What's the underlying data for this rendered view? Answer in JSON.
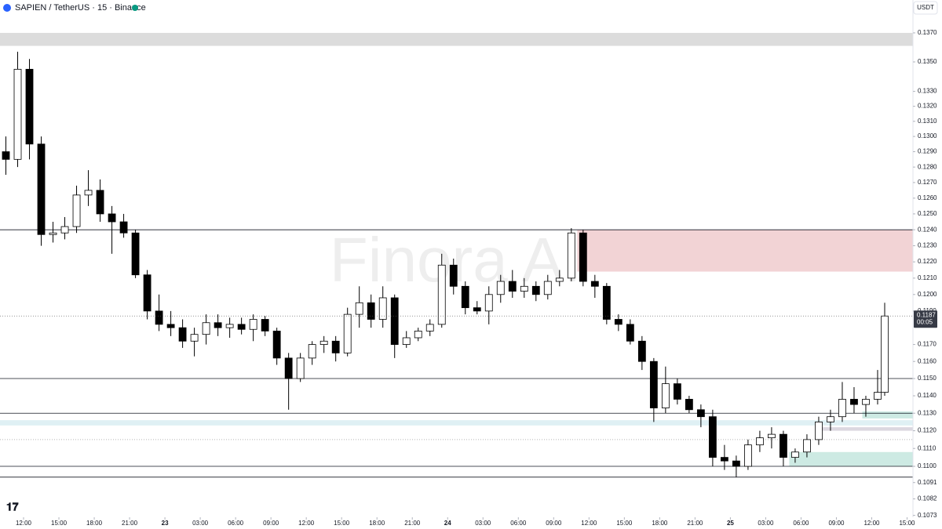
{
  "chart_data": {
    "type": "candlestick",
    "title": "SAPIEN / TetherUS · 15 · Binance",
    "currency": "USDT",
    "watermark": "Finora AI",
    "log_scale": true,
    "up_color": "#ffffff",
    "down_color": "#000000",
    "x": [
      0.5,
      1.5,
      2.5,
      3.5,
      4.5,
      5.5,
      6.5,
      7.5,
      8.5,
      9.5,
      10.5,
      11.5,
      12.5,
      13.5,
      14.5,
      15.5,
      16.5,
      17.5,
      18.5,
      19.5,
      20.5,
      21.5,
      22.5,
      23.5,
      24.5,
      25.5,
      26.5,
      27.5,
      28.5,
      29.5,
      30.5,
      31.5,
      32.5,
      33.5,
      34.5,
      35.5,
      36.5,
      37.5,
      38.5,
      39.5,
      40.5,
      41.5,
      42.5,
      43.5,
      44.5,
      45.5,
      46.5,
      47.5,
      48.5,
      49.5,
      50.5,
      51.5,
      52.5,
      53.5,
      54.5,
      55.5,
      56.5,
      57.5,
      58.5,
      59.5,
      60.5,
      61.5,
      62.5,
      63.5,
      64.5,
      65.5,
      66.5,
      67.5,
      68.5,
      69.5,
      70.5,
      71.5,
      72.5,
      73.5,
      74.5,
      75.1
    ],
    "open": [
      0.129,
      0.1285,
      0.1345,
      0.1295,
      0.1237,
      0.1238,
      0.1242,
      0.1262,
      0.1265,
      0.125,
      0.1245,
      0.1238,
      0.1212,
      0.119,
      0.1182,
      0.118,
      0.1172,
      0.1176,
      0.1183,
      0.118,
      0.1182,
      0.1179,
      0.1185,
      0.1178,
      0.1162,
      0.115,
      0.1162,
      0.117,
      0.1172,
      0.1165,
      0.1188,
      0.1195,
      0.1185,
      0.1198,
      0.117,
      0.1174,
      0.1178,
      0.1182,
      0.1218,
      0.1205,
      0.1192,
      0.119,
      0.12,
      0.1208,
      0.1202,
      0.1205,
      0.12,
      0.1208,
      0.121,
      0.1238,
      0.1208,
      0.1205,
      0.1185,
      0.1182,
      0.1172,
      0.116,
      0.1133,
      0.1147,
      0.1138,
      0.1132,
      0.1128,
      0.1105,
      0.1103,
      0.11,
      0.1112,
      0.1116,
      0.1118,
      0.1105,
      0.1108,
      0.1115,
      0.1125,
      0.1128,
      0.1138,
      0.1135,
      0.1138,
      0.1142
    ],
    "high": [
      0.13,
      0.1357,
      0.1352,
      0.13,
      0.1245,
      0.1248,
      0.1268,
      0.1278,
      0.1272,
      0.1255,
      0.125,
      0.124,
      0.1215,
      0.12,
      0.119,
      0.1185,
      0.118,
      0.1188,
      0.1188,
      0.1186,
      0.1186,
      0.1188,
      0.1187,
      0.118,
      0.1165,
      0.1165,
      0.1172,
      0.1175,
      0.1175,
      0.1192,
      0.1205,
      0.12,
      0.1205,
      0.12,
      0.1178,
      0.118,
      0.1185,
      0.1225,
      0.1222,
      0.1208,
      0.1196,
      0.1205,
      0.1212,
      0.1215,
      0.121,
      0.1208,
      0.1212,
      0.1215,
      0.1241,
      0.124,
      0.1212,
      0.1207,
      0.1188,
      0.1185,
      0.1175,
      0.1162,
      0.1157,
      0.115,
      0.114,
      0.1135,
      0.1132,
      0.1112,
      0.1106,
      0.1115,
      0.112,
      0.1122,
      0.112,
      0.111,
      0.1118,
      0.1128,
      0.1132,
      0.1148,
      0.1145,
      0.114,
      0.1155,
      0.1195
    ],
    "low": [
      0.1275,
      0.128,
      0.1285,
      0.123,
      0.1232,
      0.1234,
      0.1238,
      0.1255,
      0.1245,
      0.1225,
      0.1235,
      0.121,
      0.1185,
      0.1178,
      0.1175,
      0.1168,
      0.1163,
      0.117,
      0.1175,
      0.1174,
      0.1176,
      0.1172,
      0.1175,
      0.1158,
      0.1132,
      0.1148,
      0.1158,
      0.1165,
      0.116,
      0.1163,
      0.118,
      0.118,
      0.118,
      0.1162,
      0.1168,
      0.1172,
      0.1175,
      0.118,
      0.12,
      0.1188,
      0.1188,
      0.1182,
      0.1195,
      0.1198,
      0.1198,
      0.1196,
      0.1197,
      0.1205,
      0.1208,
      0.1205,
      0.1198,
      0.1182,
      0.1178,
      0.117,
      0.1155,
      0.1125,
      0.113,
      0.1135,
      0.113,
      0.1122,
      0.11,
      0.1098,
      0.1094,
      0.1098,
      0.1108,
      0.111,
      0.11,
      0.1102,
      0.1105,
      0.1112,
      0.112,
      0.1125,
      0.113,
      0.1128,
      0.1135,
      0.114
    ],
    "close": [
      0.1285,
      0.1345,
      0.1295,
      0.1237,
      0.1238,
      0.1242,
      0.1262,
      0.1265,
      0.125,
      0.1245,
      0.1238,
      0.1212,
      0.119,
      0.1182,
      0.118,
      0.1172,
      0.1176,
      0.1183,
      0.118,
      0.1182,
      0.1179,
      0.1185,
      0.1178,
      0.1162,
      0.115,
      0.1162,
      0.117,
      0.1172,
      0.1165,
      0.1188,
      0.1195,
      0.1185,
      0.1198,
      0.117,
      0.1174,
      0.1178,
      0.1182,
      0.1218,
      0.1205,
      0.1192,
      0.119,
      0.12,
      0.1208,
      0.1202,
      0.1205,
      0.12,
      0.1208,
      0.121,
      0.1238,
      0.1208,
      0.1205,
      0.1185,
      0.1182,
      0.1172,
      0.116,
      0.1133,
      0.1147,
      0.1138,
      0.1132,
      0.1128,
      0.1105,
      0.1103,
      0.11,
      0.1112,
      0.1116,
      0.1118,
      0.1105,
      0.1108,
      0.1115,
      0.1125,
      0.1128,
      0.1138,
      0.1135,
      0.1138,
      0.1142,
      0.1187
    ],
    "xlim": [
      0,
      77.5
    ],
    "ylim": [
      0.1072,
      0.1393
    ],
    "xticks": [
      {
        "value": 2,
        "label": "12:00"
      },
      {
        "value": 5,
        "label": "15:00"
      },
      {
        "value": 8,
        "label": "18:00"
      },
      {
        "value": 11,
        "label": "21:00"
      },
      {
        "value": 14,
        "label": "23"
      },
      {
        "value": 17,
        "label": "03:00"
      },
      {
        "value": 20,
        "label": "06:00"
      },
      {
        "value": 23,
        "label": "09:00"
      },
      {
        "value": 26,
        "label": "12:00"
      },
      {
        "value": 29,
        "label": "15:00"
      },
      {
        "value": 32,
        "label": "18:00"
      },
      {
        "value": 35,
        "label": "21:00"
      },
      {
        "value": 38,
        "label": "24"
      },
      {
        "value": 41,
        "label": "03:00"
      },
      {
        "value": 44,
        "label": "06:00"
      },
      {
        "value": 47,
        "label": "09:00"
      },
      {
        "value": 50,
        "label": "12:00"
      },
      {
        "value": 53,
        "label": "15:00"
      },
      {
        "value": 56,
        "label": "18:00"
      },
      {
        "value": 59,
        "label": "21:00"
      },
      {
        "value": 62,
        "label": "25"
      },
      {
        "value": 65,
        "label": "03:00"
      },
      {
        "value": 68,
        "label": "06:00"
      },
      {
        "value": 71,
        "label": "09:00"
      },
      {
        "value": 74,
        "label": "12:00"
      },
      {
        "value": 77,
        "label": "15:00"
      }
    ],
    "yticks": [
      {
        "value": 0.137,
        "label": "0.1370"
      },
      {
        "value": 0.135,
        "label": "0.1350"
      },
      {
        "value": 0.133,
        "label": "0.1330"
      },
      {
        "value": 0.132,
        "label": "0.1320"
      },
      {
        "value": 0.131,
        "label": "0.1310"
      },
      {
        "value": 0.13,
        "label": "0.1300"
      },
      {
        "value": 0.129,
        "label": "0.1290"
      },
      {
        "value": 0.128,
        "label": "0.1280"
      },
      {
        "value": 0.127,
        "label": "0.1270"
      },
      {
        "value": 0.126,
        "label": "0.1260"
      },
      {
        "value": 0.125,
        "label": "0.1250"
      },
      {
        "value": 0.124,
        "label": "0.1240"
      },
      {
        "value": 0.123,
        "label": "0.1230"
      },
      {
        "value": 0.122,
        "label": "0.1220"
      },
      {
        "value": 0.121,
        "label": "0.1210"
      },
      {
        "value": 0.12,
        "label": "0.1200"
      },
      {
        "value": 0.119,
        "label": "0.1190"
      },
      {
        "value": 0.117,
        "label": "0.1170"
      },
      {
        "value": 0.116,
        "label": "0.1160"
      },
      {
        "value": 0.115,
        "label": "0.1150"
      },
      {
        "value": 0.114,
        "label": "0.1140"
      },
      {
        "value": 0.113,
        "label": "0.1130"
      },
      {
        "value": 0.112,
        "label": "0.1120"
      },
      {
        "value": 0.111,
        "label": "0.1110"
      },
      {
        "value": 0.11,
        "label": "0.1100"
      },
      0.1091,
      0.1082,
      0.1073
    ],
    "last_price": {
      "value": 0.1187,
      "label": "0.1187",
      "countdown": "00:05"
    },
    "levels": [
      {
        "value": 0.124,
        "style": "solid"
      },
      {
        "value": 0.115,
        "style": "solid"
      },
      {
        "value": 0.113,
        "style": "solid"
      },
      {
        "value": 0.11,
        "style": "solid"
      },
      {
        "value": 0.1094,
        "style": "solid"
      },
      {
        "value": 0.1115,
        "style": "dotted"
      }
    ],
    "zones": [
      {
        "top": 0.137,
        "bottom": 0.1361,
        "start": 0,
        "color": "#dcdcdc"
      },
      {
        "top": 0.124,
        "bottom": 0.1214,
        "start": 49,
        "color": "#f2d3d5"
      },
      {
        "top": 0.1126,
        "bottom": 0.1123,
        "start": 0,
        "color": "#dff0f4"
      },
      {
        "top": 0.1131,
        "bottom": 0.1127,
        "start": 73.2,
        "color": "#cdeae3"
      },
      {
        "top": 0.1122,
        "bottom": 0.112,
        "start": 69.7,
        "color": "#dcd8e0"
      },
      {
        "top": 0.1108,
        "bottom": 0.11,
        "start": 67,
        "color": "#cdeae3"
      }
    ]
  }
}
